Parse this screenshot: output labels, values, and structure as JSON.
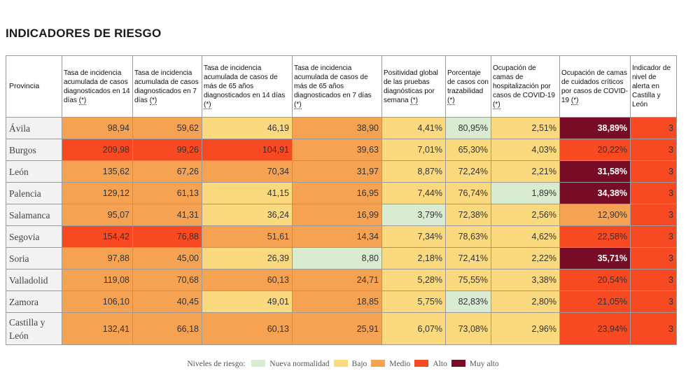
{
  "title": "INDICADORES DE RIESGO",
  "colors": {
    "nueva": "#d9ecd2",
    "bajo": "#fbd97e",
    "medio": "#f5a352",
    "alto": "#f74a23",
    "muy": "#760c26"
  },
  "headers": [
    {
      "label": "Provincia",
      "note": ""
    },
    {
      "label": "Tasa de incidencia acumulada de casos diagnosticados en 14 días",
      "note": "(*)"
    },
    {
      "label": "Tasa de incidencia acumulada de casos diagnosticados en 7 días",
      "note": "(*)"
    },
    {
      "label": "Tasa de incidencia acumulada de casos de más de 65 años diagnosticados en 14 días",
      "note": "(*)"
    },
    {
      "label": "Tasa de incidencia acumulada de casos de más de 65 años diagnosticados en 7 días",
      "note": "(*)"
    },
    {
      "label": "Positividad global de las pruebas diagnósticas por semana",
      "note": "(*)"
    },
    {
      "label": "Porcentaje de casos con trazabilidad",
      "note": "(*)"
    },
    {
      "label": "Ocupación de camas de hospitalización por casos de COVID-19",
      "note": "(*)"
    },
    {
      "label": "Ocupación de camas de cuidados críticos por casos de COVID-19",
      "note": "(*)"
    },
    {
      "label": "Indicador de nivel de alerta en Castilla y León",
      "note": ""
    }
  ],
  "rows": [
    {
      "provincia": "Ávila",
      "cells": [
        {
          "v": "98,94",
          "lvl": "medio"
        },
        {
          "v": "59,62",
          "lvl": "medio"
        },
        {
          "v": "46,19",
          "lvl": "bajo"
        },
        {
          "v": "38,90",
          "lvl": "medio"
        },
        {
          "v": "4,41%",
          "lvl": "bajo"
        },
        {
          "v": "80,95%",
          "lvl": "nueva"
        },
        {
          "v": "2,51%",
          "lvl": "bajo"
        },
        {
          "v": "38,89%",
          "lvl": "muy"
        },
        {
          "v": "3",
          "lvl": "alto"
        }
      ]
    },
    {
      "provincia": "Burgos",
      "cells": [
        {
          "v": "209,98",
          "lvl": "alto"
        },
        {
          "v": "99,26",
          "lvl": "alto"
        },
        {
          "v": "104,91",
          "lvl": "alto"
        },
        {
          "v": "39,63",
          "lvl": "medio"
        },
        {
          "v": "7,01%",
          "lvl": "bajo"
        },
        {
          "v": "65,30%",
          "lvl": "bajo"
        },
        {
          "v": "4,03%",
          "lvl": "bajo"
        },
        {
          "v": "20,22%",
          "lvl": "alto"
        },
        {
          "v": "3",
          "lvl": "alto"
        }
      ]
    },
    {
      "provincia": "León",
      "cells": [
        {
          "v": "135,62",
          "lvl": "medio"
        },
        {
          "v": "67,26",
          "lvl": "medio"
        },
        {
          "v": "70,34",
          "lvl": "medio"
        },
        {
          "v": "31,97",
          "lvl": "medio"
        },
        {
          "v": "8,87%",
          "lvl": "bajo"
        },
        {
          "v": "72,24%",
          "lvl": "bajo"
        },
        {
          "v": "2,21%",
          "lvl": "bajo"
        },
        {
          "v": "31,58%",
          "lvl": "muy"
        },
        {
          "v": "3",
          "lvl": "alto"
        }
      ]
    },
    {
      "provincia": "Palencia",
      "cells": [
        {
          "v": "129,12",
          "lvl": "medio"
        },
        {
          "v": "61,13",
          "lvl": "medio"
        },
        {
          "v": "41,15",
          "lvl": "bajo"
        },
        {
          "v": "16,95",
          "lvl": "medio"
        },
        {
          "v": "7,44%",
          "lvl": "bajo"
        },
        {
          "v": "76,74%",
          "lvl": "bajo"
        },
        {
          "v": "1,89%",
          "lvl": "nueva"
        },
        {
          "v": "34,38%",
          "lvl": "muy"
        },
        {
          "v": "3",
          "lvl": "alto"
        }
      ]
    },
    {
      "provincia": "Salamanca",
      "cells": [
        {
          "v": "95,07",
          "lvl": "medio"
        },
        {
          "v": "41,31",
          "lvl": "medio"
        },
        {
          "v": "36,24",
          "lvl": "bajo"
        },
        {
          "v": "16,99",
          "lvl": "medio"
        },
        {
          "v": "3,79%",
          "lvl": "nueva"
        },
        {
          "v": "72,38%",
          "lvl": "bajo"
        },
        {
          "v": "2,56%",
          "lvl": "bajo"
        },
        {
          "v": "12,90%",
          "lvl": "medio"
        },
        {
          "v": "3",
          "lvl": "alto"
        }
      ]
    },
    {
      "provincia": "Segovia",
      "cells": [
        {
          "v": "154,42",
          "lvl": "alto"
        },
        {
          "v": "76,88",
          "lvl": "alto"
        },
        {
          "v": "51,61",
          "lvl": "medio"
        },
        {
          "v": "14,34",
          "lvl": "medio"
        },
        {
          "v": "7,34%",
          "lvl": "bajo"
        },
        {
          "v": "78,63%",
          "lvl": "bajo"
        },
        {
          "v": "4,62%",
          "lvl": "bajo"
        },
        {
          "v": "22,58%",
          "lvl": "alto"
        },
        {
          "v": "3",
          "lvl": "alto"
        }
      ]
    },
    {
      "provincia": "Soria",
      "cells": [
        {
          "v": "97,88",
          "lvl": "medio"
        },
        {
          "v": "45,00",
          "lvl": "medio"
        },
        {
          "v": "26,39",
          "lvl": "bajo"
        },
        {
          "v": "8,80",
          "lvl": "nueva"
        },
        {
          "v": "2,18%",
          "lvl": "bajo"
        },
        {
          "v": "72,41%",
          "lvl": "bajo"
        },
        {
          "v": "2,22%",
          "lvl": "bajo"
        },
        {
          "v": "35,71%",
          "lvl": "muy"
        },
        {
          "v": "3",
          "lvl": "alto"
        }
      ]
    },
    {
      "provincia": "Valladolid",
      "cells": [
        {
          "v": "119,08",
          "lvl": "medio"
        },
        {
          "v": "70,68",
          "lvl": "medio"
        },
        {
          "v": "60,13",
          "lvl": "medio"
        },
        {
          "v": "24,71",
          "lvl": "medio"
        },
        {
          "v": "5,28%",
          "lvl": "bajo"
        },
        {
          "v": "75,55%",
          "lvl": "bajo"
        },
        {
          "v": "3,38%",
          "lvl": "bajo"
        },
        {
          "v": "20,54%",
          "lvl": "alto"
        },
        {
          "v": "3",
          "lvl": "alto"
        }
      ]
    },
    {
      "provincia": "Zamora",
      "cells": [
        {
          "v": "106,10",
          "lvl": "medio"
        },
        {
          "v": "40,45",
          "lvl": "medio"
        },
        {
          "v": "49,01",
          "lvl": "bajo"
        },
        {
          "v": "18,85",
          "lvl": "medio"
        },
        {
          "v": "5,75%",
          "lvl": "bajo"
        },
        {
          "v": "82,83%",
          "lvl": "nueva"
        },
        {
          "v": "2,80%",
          "lvl": "bajo"
        },
        {
          "v": "21,05%",
          "lvl": "alto"
        },
        {
          "v": "3",
          "lvl": "alto"
        }
      ]
    },
    {
      "provincia": "Castilla y León",
      "cells": [
        {
          "v": "132,41",
          "lvl": "medio"
        },
        {
          "v": "66,18",
          "lvl": "medio"
        },
        {
          "v": "60,13",
          "lvl": "medio"
        },
        {
          "v": "25,91",
          "lvl": "medio"
        },
        {
          "v": "6,07%",
          "lvl": "bajo"
        },
        {
          "v": "73,08%",
          "lvl": "bajo"
        },
        {
          "v": "2,96%",
          "lvl": "bajo"
        },
        {
          "v": "23,94%",
          "lvl": "alto"
        },
        {
          "v": "3",
          "lvl": "alto"
        }
      ]
    }
  ],
  "legend": {
    "label": "Niveles de riesgo:",
    "items": [
      {
        "key": "nueva",
        "label": "Nueva normalidad"
      },
      {
        "key": "bajo",
        "label": "Bajo"
      },
      {
        "key": "medio",
        "label": "Medio"
      },
      {
        "key": "alto",
        "label": "Alto"
      },
      {
        "key": "muy",
        "label": "Muy alto"
      }
    ]
  }
}
